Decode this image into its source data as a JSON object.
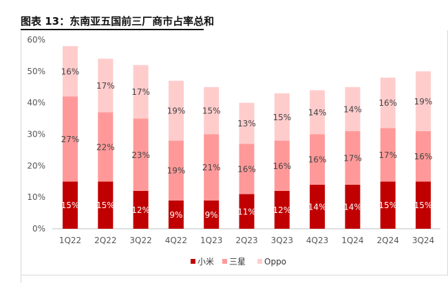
{
  "title": "图表 13：东南亚五国前三厂商市占率总和",
  "chart_data": {
    "type": "bar",
    "stacked": true,
    "categories": [
      "1Q22",
      "2Q22",
      "3Q22",
      "4Q22",
      "1Q23",
      "2Q23",
      "3Q23",
      "4Q23",
      "1Q24",
      "2Q24",
      "3Q24"
    ],
    "series": [
      {
        "name": "小米",
        "color": "#c00000",
        "label_color": "#ffffff",
        "values": [
          15,
          15,
          12,
          9,
          9,
          11,
          12,
          14,
          14,
          15,
          15
        ],
        "labels": [
          "15%",
          "15%",
          "12%",
          "9%",
          "9%",
          "11%",
          "12%",
          "14%",
          "14%",
          "15%",
          "15%"
        ]
      },
      {
        "name": "三星",
        "color": "#ff9999",
        "label_color": "#444444",
        "values": [
          27,
          22,
          23,
          19,
          21,
          16,
          16,
          16,
          17,
          17,
          16
        ],
        "labels": [
          "27%",
          "22%",
          "23%",
          "19%",
          "21%",
          "16%",
          "16%",
          "16%",
          "17%",
          "17%",
          "16%"
        ]
      },
      {
        "name": "Oppo",
        "color": "#ffcccc",
        "label_color": "#444444",
        "values": [
          16,
          17,
          17,
          19,
          15,
          13,
          15,
          14,
          14,
          16,
          19
        ],
        "labels": [
          "16%",
          "17%",
          "17%",
          "19%",
          "15%",
          "13%",
          "15%",
          "14%",
          "14%",
          "16%",
          "19%"
        ]
      }
    ],
    "yticks": [
      "0%",
      "10%",
      "20%",
      "30%",
      "40%",
      "50%",
      "60%"
    ],
    "ylim": [
      0,
      60
    ],
    "grid": false,
    "legend_position": "bottom"
  }
}
